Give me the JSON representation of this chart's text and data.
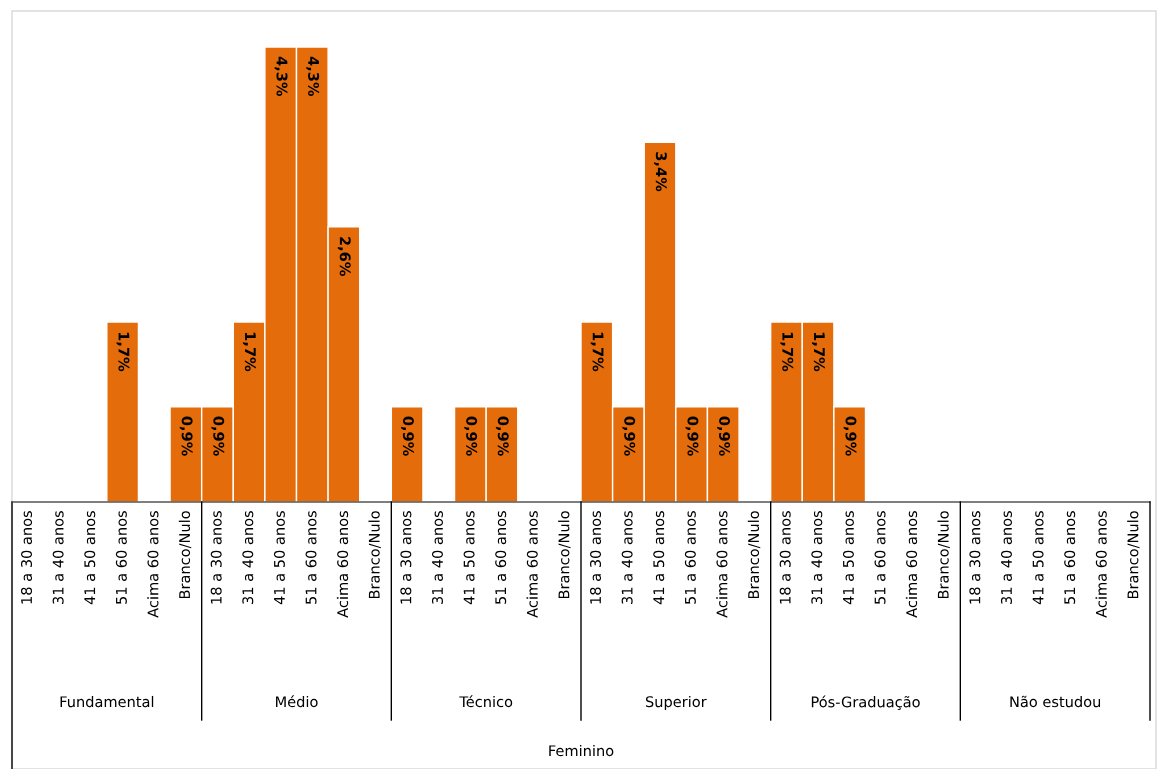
{
  "chart_data": {
    "type": "bar",
    "color": "#e46c0a",
    "categories": [
      "18 a 30 anos",
      "31 a 40 anos",
      "41 a 50 anos",
      "51 a 60 anos",
      "Acima 60 anos",
      "Branco/Nulo",
      "18 a 30 anos",
      "31 a 40 anos",
      "41 a 50 anos",
      "51 a 60 anos",
      "Acima 60 anos",
      "Branco/Nulo",
      "18 a 30 anos",
      "31 a 40 anos",
      "41 a 50 anos",
      "51 a 60 anos",
      "Acima 60 anos",
      "Branco/Nulo",
      "18 a 30 anos",
      "31 a 40 anos",
      "41 a 50 anos",
      "51 a 60 anos",
      "Acima 60 anos",
      "Branco/Nulo",
      "18 a 30 anos",
      "31 a 40 anos",
      "41 a 50 anos",
      "51 a 60 anos",
      "Acima 60 anos",
      "Branco/Nulo",
      "18 a 30 anos",
      "31 a 40 anos",
      "41 a 50 anos",
      "51 a 60 anos",
      "Acima 60 anos",
      "Branco/Nulo"
    ],
    "values": [
      null,
      null,
      null,
      1.7,
      null,
      0.9,
      0.9,
      1.7,
      4.3,
      4.3,
      2.6,
      null,
      0.9,
      null,
      0.9,
      0.9,
      null,
      null,
      1.7,
      0.9,
      3.4,
      0.9,
      0.9,
      null,
      1.7,
      1.7,
      0.9,
      null,
      null,
      null,
      null,
      null,
      null,
      null,
      null,
      null
    ],
    "value_labels": [
      null,
      null,
      null,
      "1,7%",
      null,
      "0,9%",
      "0,9%",
      "1,7%",
      "4,3%",
      "4,3%",
      "2,6%",
      null,
      "0,9%",
      null,
      "0,9%",
      "0,9%",
      null,
      null,
      "1,7%",
      "0,9%",
      "3,4%",
      "0,9%",
      "0,9%",
      null,
      "1,7%",
      "1,7%",
      "0,9%",
      null,
      null,
      null,
      null,
      null,
      null,
      null,
      null,
      null
    ],
    "annotations": [
      "Fundamental",
      "Médio",
      "Técnico",
      "Superior",
      "Pós-Graduação",
      "Não estudou",
      "Feminino"
    ],
    "grid": false,
    "legend": false
  }
}
